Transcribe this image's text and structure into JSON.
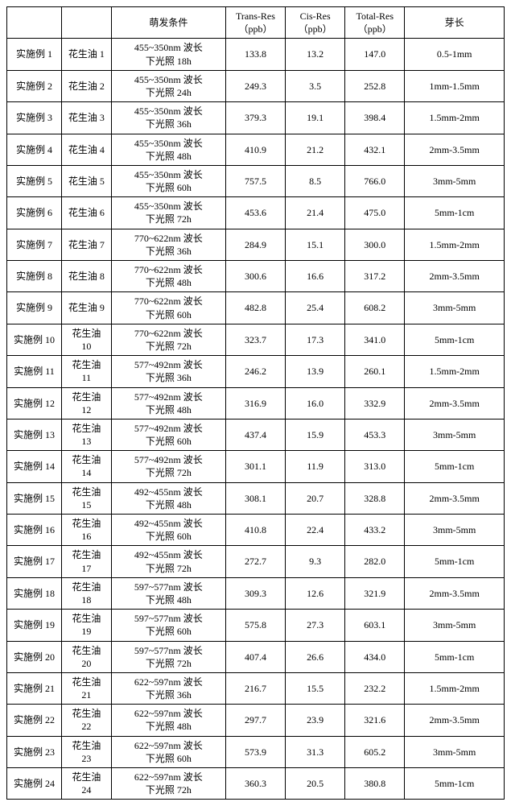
{
  "headers": {
    "exp": "",
    "oil": "",
    "cond": "萌发条件",
    "trans": "Trans-Res\n（ppb）",
    "cis": "Cis-Res\n（ppb）",
    "total": "Total-Res\n（ppb）",
    "len": "芽长"
  },
  "rows": [
    {
      "exp": "实施例 1",
      "oil": "花生油 1",
      "cond": "455~350nm 波长\n下光照 18h",
      "trans": "133.8",
      "cis": "13.2",
      "total": "147.0",
      "len": "0.5-1mm"
    },
    {
      "exp": "实施例 2",
      "oil": "花生油 2",
      "cond": "455~350nm 波长\n下光照 24h",
      "trans": "249.3",
      "cis": "3.5",
      "total": "252.8",
      "len": "1mm-1.5mm"
    },
    {
      "exp": "实施例 3",
      "oil": "花生油 3",
      "cond": "455~350nm 波长\n下光照 36h",
      "trans": "379.3",
      "cis": "19.1",
      "total": "398.4",
      "len": "1.5mm-2mm"
    },
    {
      "exp": "实施例 4",
      "oil": "花生油 4",
      "cond": "455~350nm 波长\n下光照 48h",
      "trans": "410.9",
      "cis": "21.2",
      "total": "432.1",
      "len": "2mm-3.5mm"
    },
    {
      "exp": "实施例 5",
      "oil": "花生油 5",
      "cond": "455~350nm 波长\n下光照 60h",
      "trans": "757.5",
      "cis": "8.5",
      "total": "766.0",
      "len": "3mm-5mm"
    },
    {
      "exp": "实施例 6",
      "oil": "花生油 6",
      "cond": "455~350nm 波长\n下光照 72h",
      "trans": "453.6",
      "cis": "21.4",
      "total": "475.0",
      "len": "5mm-1cm"
    },
    {
      "exp": "实施例 7",
      "oil": "花生油 7",
      "cond": "770~622nm 波长\n下光照 36h",
      "trans": "284.9",
      "cis": "15.1",
      "total": "300.0",
      "len": "1.5mm-2mm"
    },
    {
      "exp": "实施例 8",
      "oil": "花生油 8",
      "cond": "770~622nm 波长\n下光照 48h",
      "trans": "300.6",
      "cis": "16.6",
      "total": "317.2",
      "len": "2mm-3.5mm"
    },
    {
      "exp": "实施例 9",
      "oil": "花生油 9",
      "cond": "770~622nm 波长\n下光照 60h",
      "trans": "482.8",
      "cis": "25.4",
      "total": "608.2",
      "len": "3mm-5mm"
    },
    {
      "exp": "实施例 10",
      "oil": "花生油\n10",
      "cond": "770~622nm 波长\n下光照 72h",
      "trans": "323.7",
      "cis": "17.3",
      "total": "341.0",
      "len": "5mm-1cm"
    },
    {
      "exp": "实施例 11",
      "oil": "花生油\n11",
      "cond": "577~492nm 波长\n下光照 36h",
      "trans": "246.2",
      "cis": "13.9",
      "total": "260.1",
      "len": "1.5mm-2mm"
    },
    {
      "exp": "实施例 12",
      "oil": "花生油\n12",
      "cond": "577~492nm 波长\n下光照 48h",
      "trans": "316.9",
      "cis": "16.0",
      "total": "332.9",
      "len": "2mm-3.5mm"
    },
    {
      "exp": "实施例 13",
      "oil": "花生油\n13",
      "cond": "577~492nm 波长\n下光照 60h",
      "trans": "437.4",
      "cis": "15.9",
      "total": "453.3",
      "len": "3mm-5mm"
    },
    {
      "exp": "实施例 14",
      "oil": "花生油\n14",
      "cond": "577~492nm 波长\n下光照 72h",
      "trans": "301.1",
      "cis": "11.9",
      "total": "313.0",
      "len": "5mm-1cm"
    },
    {
      "exp": "实施例 15",
      "oil": "花生油\n15",
      "cond": "492~455nm 波长\n下光照 48h",
      "trans": "308.1",
      "cis": "20.7",
      "total": "328.8",
      "len": "2mm-3.5mm"
    },
    {
      "exp": "实施例 16",
      "oil": "花生油\n16",
      "cond": "492~455nm 波长\n下光照 60h",
      "trans": "410.8",
      "cis": "22.4",
      "total": "433.2",
      "len": "3mm-5mm"
    },
    {
      "exp": "实施例 17",
      "oil": "花生油\n17",
      "cond": "492~455nm 波长\n下光照 72h",
      "trans": "272.7",
      "cis": "9.3",
      "total": "282.0",
      "len": "5mm-1cm"
    },
    {
      "exp": "实施例 18",
      "oil": "花生油\n18",
      "cond": "597~577nm 波长\n下光照 48h",
      "trans": "309.3",
      "cis": "12.6",
      "total": "321.9",
      "len": "2mm-3.5mm"
    },
    {
      "exp": "实施例 19",
      "oil": "花生油\n19",
      "cond": "597~577nm 波长\n下光照 60h",
      "trans": "575.8",
      "cis": "27.3",
      "total": "603.1",
      "len": "3mm-5mm"
    },
    {
      "exp": "实施例 20",
      "oil": "花生油\n20",
      "cond": "597~577nm 波长\n下光照 72h",
      "trans": "407.4",
      "cis": "26.6",
      "total": "434.0",
      "len": "5mm-1cm"
    },
    {
      "exp": "实施例 21",
      "oil": "花生油\n21",
      "cond": "622~597nm 波长\n下光照 36h",
      "trans": "216.7",
      "cis": "15.5",
      "total": "232.2",
      "len": "1.5mm-2mm"
    },
    {
      "exp": "实施例 22",
      "oil": "花生油\n22",
      "cond": "622~597nm 波长\n下光照 48h",
      "trans": "297.7",
      "cis": "23.9",
      "total": "321.6",
      "len": "2mm-3.5mm"
    },
    {
      "exp": "实施例 23",
      "oil": "花生油\n23",
      "cond": "622~597nm 波长\n下光照 60h",
      "trans": "573.9",
      "cis": "31.3",
      "total": "605.2",
      "len": "3mm-5mm"
    },
    {
      "exp": "实施例 24",
      "oil": "花生油\n24",
      "cond": "622~597nm 波长\n下光照 72h",
      "trans": "360.3",
      "cis": "20.5",
      "total": "380.8",
      "len": "5mm-1cm"
    }
  ]
}
